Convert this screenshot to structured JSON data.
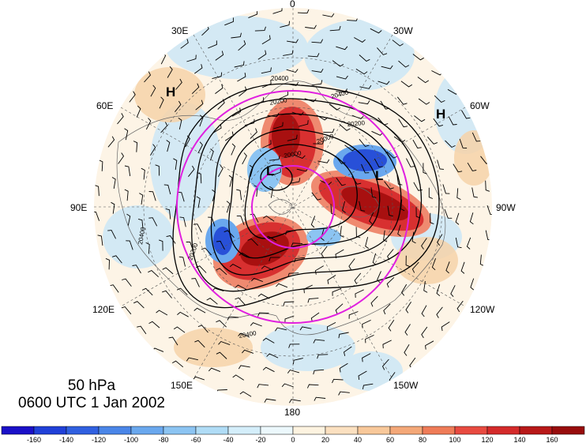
{
  "map": {
    "projection": "north polar stereographic",
    "level_label": "50 hPa",
    "time_label": "0600 UTC 1 Jan 2002",
    "longitude_labels": [
      "0",
      "30W",
      "60W",
      "90W",
      "120W",
      "150W",
      "180",
      "150E",
      "120E",
      "90E",
      "60E",
      "30E"
    ],
    "contour_labels": [
      "20400",
      "20200",
      "20000",
      "20400",
      "20200",
      "20000",
      "20400",
      "20200",
      "20400"
    ],
    "pressure_centers": [
      {
        "label": "H",
        "name": "high-center-eurasia"
      },
      {
        "label": "H",
        "name": "high-center-atlantic"
      },
      {
        "label": "L",
        "name": "low-center-canada"
      },
      {
        "label": "L",
        "name": "low-center-siberia"
      }
    ],
    "highlight_circle_color": "#e020e0"
  },
  "colorbar": {
    "ticks": [
      "-160",
      "-140",
      "-120",
      "-100",
      "-80",
      "-60",
      "-40",
      "-20",
      "0",
      "20",
      "40",
      "60",
      "80",
      "100",
      "120",
      "140",
      "160"
    ],
    "colors": [
      "#1a10c8",
      "#2040d8",
      "#3060e0",
      "#4a86e8",
      "#6aa8ee",
      "#8cc4f2",
      "#b0dcf6",
      "#d4eefa",
      "#ecf8fc",
      "#fdf3e0",
      "#fbe0c0",
      "#f8c89a",
      "#f4a878",
      "#ef7c58",
      "#e84a40",
      "#d42a2a",
      "#b81818",
      "#980c0c"
    ]
  }
}
